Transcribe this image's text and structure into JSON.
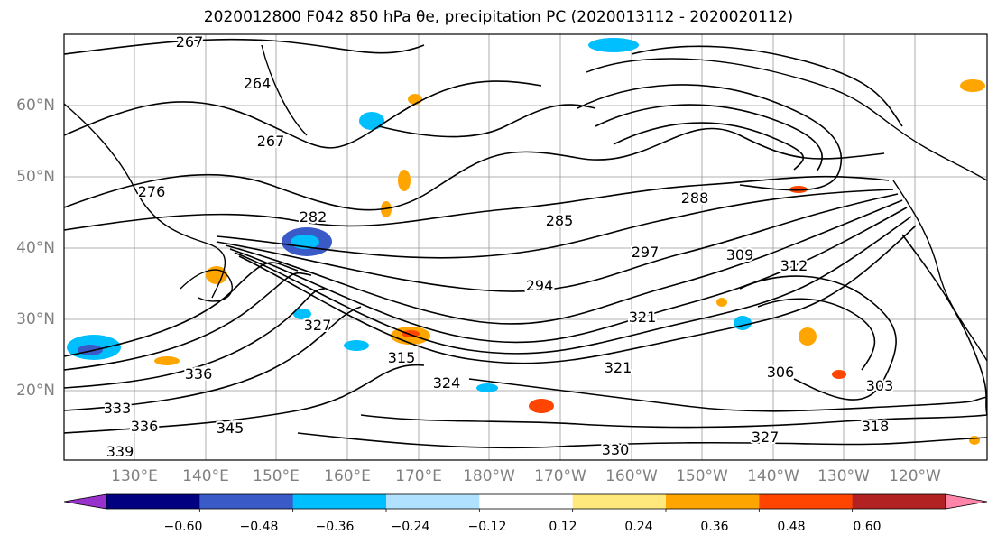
{
  "title": "2020012800 F042 850 hPa θe, precipitation PC (2020013112 - 2020020112)",
  "map": {
    "lat_labels": [
      "60°N",
      "50°N",
      "40°N",
      "30°N",
      "20°N"
    ],
    "lon_labels": [
      "130°E",
      "140°E",
      "150°E",
      "160°E",
      "170°E",
      "180°W",
      "170°W",
      "160°W",
      "150°W",
      "140°W",
      "130°W",
      "120°W"
    ],
    "grid_color": "#999999",
    "contour_labels": [
      "267",
      "264",
      "267",
      "276",
      "282",
      "285",
      "288",
      "294",
      "297",
      "309",
      "312",
      "321",
      "327",
      "336",
      "318",
      "303",
      "306",
      "330",
      "339",
      "336",
      "345",
      "315",
      "324",
      "333",
      "321",
      "327"
    ]
  },
  "colorbar": {
    "ticks": [
      "−0.60",
      "−0.48",
      "−0.36",
      "−0.24",
      "−0.12",
      "0.12",
      "0.24",
      "0.36",
      "0.48",
      "0.60"
    ],
    "colors": [
      "#9932cc",
      "#000080",
      "#3a5bc7",
      "#00bfff",
      "#b0e2ff",
      "#ffffff",
      "#ffe87c",
      "#ffa500",
      "#ff4500",
      "#b22222",
      "#ff85a8"
    ]
  },
  "chart_data": {
    "type": "heatmap",
    "title": "2020012800 F042 850 hPa θe, precipitation PC (2020013112 - 2020020112)",
    "lat_range": [
      10,
      70
    ],
    "lon_range": [
      120,
      250
    ],
    "contour_values": [
      264,
      267,
      276,
      282,
      285,
      288,
      294,
      297,
      303,
      306,
      309,
      312,
      315,
      318,
      321,
      324,
      327,
      330,
      333,
      336,
      339,
      345
    ],
    "colorbar_levels": [
      -0.6,
      -0.48,
      -0.36,
      -0.24,
      -0.12,
      0.12,
      0.24,
      0.36,
      0.48,
      0.6
    ]
  }
}
